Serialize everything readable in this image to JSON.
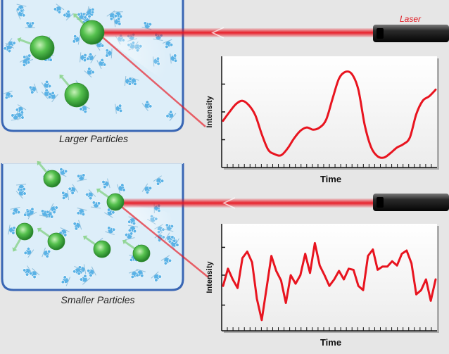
{
  "laser": {
    "label": "Laser"
  },
  "panels": [
    {
      "caption": "Larger Particles"
    },
    {
      "caption": "Smaller Particles"
    }
  ],
  "charts": [
    {
      "type": "line",
      "xlabel": "Time",
      "ylabel": "Intensity",
      "ylim": [
        0,
        1
      ],
      "y": [
        0.42,
        0.5,
        0.57,
        0.6,
        0.56,
        0.47,
        0.3,
        0.16,
        0.12,
        0.11,
        0.17,
        0.26,
        0.33,
        0.36,
        0.34,
        0.36,
        0.43,
        0.62,
        0.8,
        0.86,
        0.84,
        0.7,
        0.38,
        0.18,
        0.1,
        0.09,
        0.13,
        0.18,
        0.21,
        0.27,
        0.48,
        0.6,
        0.64,
        0.7
      ]
    },
    {
      "type": "line",
      "xlabel": "Time",
      "ylabel": "Intensity",
      "ylim": [
        0,
        1
      ],
      "y": [
        0.42,
        0.58,
        0.48,
        0.4,
        0.68,
        0.74,
        0.64,
        0.3,
        0.1,
        0.4,
        0.7,
        0.56,
        0.47,
        0.26,
        0.52,
        0.44,
        0.52,
        0.72,
        0.54,
        0.82,
        0.61,
        0.52,
        0.42,
        0.48,
        0.56,
        0.48,
        0.58,
        0.57,
        0.42,
        0.38,
        0.7,
        0.76,
        0.57,
        0.6,
        0.6,
        0.65,
        0.61,
        0.72,
        0.75,
        0.63,
        0.34,
        0.38,
        0.48,
        0.28,
        0.48
      ]
    }
  ],
  "colors": {
    "laser": "#e8141f",
    "particle": "#3fae3f",
    "solvent": "#5ab2e6",
    "container_border": "#3966b4",
    "container_fill": "#ddeef9",
    "background": "#e6e6e6"
  }
}
